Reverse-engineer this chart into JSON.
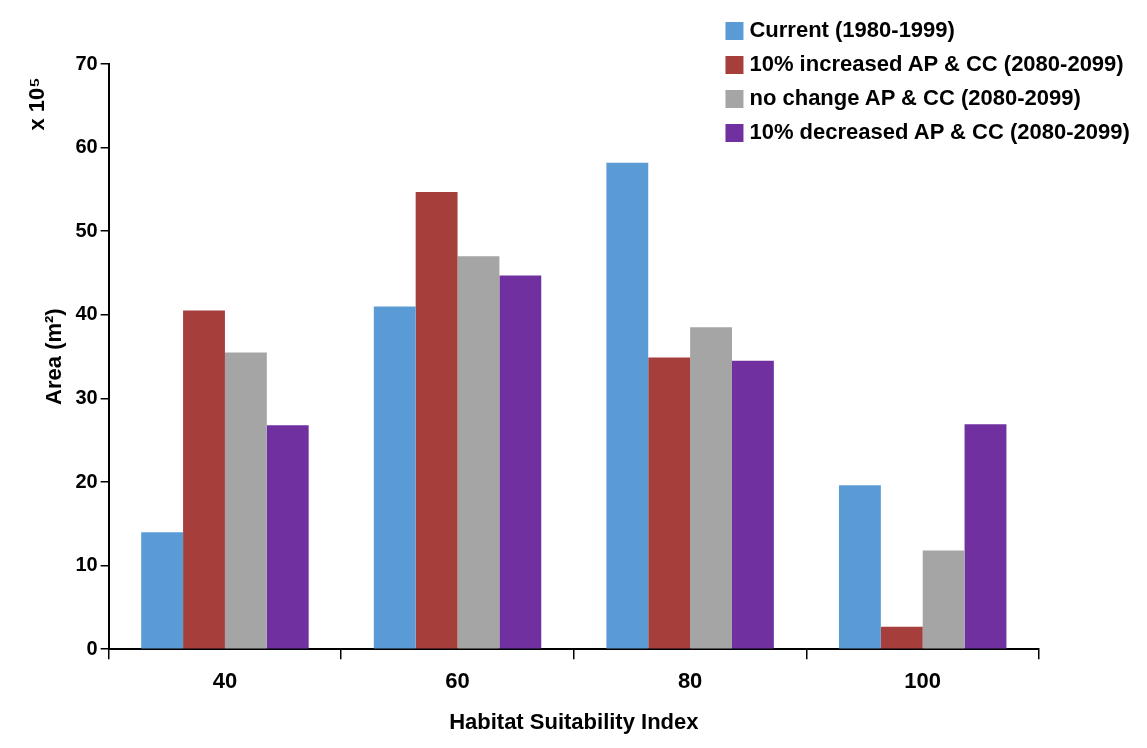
{
  "chart_data": {
    "type": "bar",
    "xlabel": "Habitat Suitability Index",
    "ylabel": "Area (m²)",
    "annotations": [
      "x 10⁵"
    ],
    "categories": [
      "40",
      "60",
      "80",
      "100"
    ],
    "series": [
      {
        "name": "Current (1980-1999)",
        "color": "#5b9bd5",
        "values": [
          14,
          41,
          58.2,
          19.6
        ]
      },
      {
        "name": "10% increased AP & CC (2080-2099)",
        "color": "#a63f3c",
        "values": [
          40.5,
          54.7,
          34.9,
          2.7
        ]
      },
      {
        "name": "no change AP & CC (2080-2099)",
        "color": "#a5a5a5",
        "values": [
          35.5,
          47,
          38.5,
          11.8
        ]
      },
      {
        "name": "10% decreased AP & CC (2080-2099)",
        "color": "#7030a0",
        "values": [
          26.8,
          44.7,
          34.5,
          26.9
        ]
      }
    ],
    "ylim": [
      0,
      70
    ],
    "yticks": [
      0,
      10,
      20,
      30,
      40,
      50,
      60,
      70
    ],
    "legend": "top right"
  }
}
